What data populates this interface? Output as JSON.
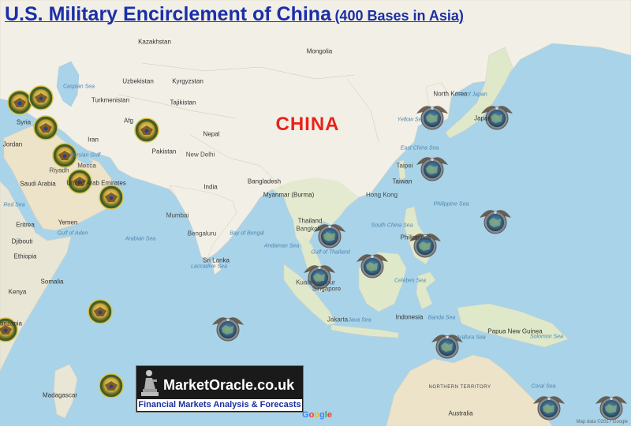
{
  "title": {
    "main": "U.S. Military Encirclement of China",
    "sub": "(400 Bases in Asia)"
  },
  "highlight_label": "CHINA",
  "colors": {
    "title": "#1b2fa8",
    "highlight": "#e8231b",
    "ocean": "#a9d3e8",
    "land": "#f2efe6",
    "forest": "#c8dfae",
    "desert": "#ece3c8"
  },
  "labels": [
    {
      "text": "Kazakhstan",
      "kind": "country"
    },
    {
      "text": "Mongolia",
      "kind": "country"
    },
    {
      "text": "Uzbekistan",
      "kind": "country"
    },
    {
      "text": "Kyrgyzstan",
      "kind": "country"
    },
    {
      "text": "Turkmenistan",
      "kind": "country"
    },
    {
      "text": "Tajikistan",
      "kind": "country"
    },
    {
      "text": "Caspian Sea",
      "kind": "sea"
    },
    {
      "text": "Syria",
      "kind": "country"
    },
    {
      "text": "Jordan",
      "kind": "country"
    },
    {
      "text": "Iran",
      "kind": "country"
    },
    {
      "text": "Afg",
      "kind": "country"
    },
    {
      "text": "Pakistan",
      "kind": "country"
    },
    {
      "text": "Nepal",
      "kind": "country"
    },
    {
      "text": "New Delhi",
      "kind": "city"
    },
    {
      "text": "Riyadh",
      "kind": "city"
    },
    {
      "text": "Saudi Arabia",
      "kind": "country"
    },
    {
      "text": "Mecca",
      "kind": "city"
    },
    {
      "text": "Persian Gulf",
      "kind": "sea"
    },
    {
      "text": "United Arab Emirates",
      "kind": "country"
    },
    {
      "text": "Red Sea",
      "kind": "sea"
    },
    {
      "text": "Yemen",
      "kind": "country"
    },
    {
      "text": "Eritrea",
      "kind": "country"
    },
    {
      "text": "Djibouti",
      "kind": "country"
    },
    {
      "text": "Gulf of Aden",
      "kind": "sea"
    },
    {
      "text": "Ethiopia",
      "kind": "country"
    },
    {
      "text": "Somalia",
      "kind": "country"
    },
    {
      "text": "Kenya",
      "kind": "country"
    },
    {
      "text": "Tanzania",
      "kind": "country"
    },
    {
      "text": "Madagascar",
      "kind": "country"
    },
    {
      "text": "Arabian Sea",
      "kind": "sea"
    },
    {
      "text": "India",
      "kind": "country"
    },
    {
      "text": "Mumbai",
      "kind": "city"
    },
    {
      "text": "Bengaluru",
      "kind": "city"
    },
    {
      "text": "Sri Lanka",
      "kind": "country"
    },
    {
      "text": "Laccadive Sea",
      "kind": "sea"
    },
    {
      "text": "Bay of Bengal",
      "kind": "sea"
    },
    {
      "text": "Bangladesh",
      "kind": "country"
    },
    {
      "text": "Myanmar (Burma)",
      "kind": "country"
    },
    {
      "text": "Thailand",
      "kind": "country"
    },
    {
      "text": "Bangkok",
      "kind": "city"
    },
    {
      "text": "Andaman Sea",
      "kind": "sea"
    },
    {
      "text": "Kuala Lumpur",
      "kind": "city"
    },
    {
      "text": "Singapore",
      "kind": "city"
    },
    {
      "text": "Java Sea",
      "kind": "sea"
    },
    {
      "text": "Jakarta",
      "kind": "city"
    },
    {
      "text": "Indonesia",
      "kind": "country"
    },
    {
      "text": "Hong Kong",
      "kind": "city"
    },
    {
      "text": "Taiwan",
      "kind": "country"
    },
    {
      "text": "Taipei",
      "kind": "city"
    },
    {
      "text": "East China Sea",
      "kind": "sea"
    },
    {
      "text": "Yellow Sea",
      "kind": "sea"
    },
    {
      "text": "North Korea",
      "kind": "country"
    },
    {
      "text": "Sea of Japan",
      "kind": "sea"
    },
    {
      "text": "Japan",
      "kind": "country"
    },
    {
      "text": "South China Sea",
      "kind": "sea"
    },
    {
      "text": "Philippines",
      "kind": "country"
    },
    {
      "text": "Philippine Sea",
      "kind": "sea"
    },
    {
      "text": "Celebes Sea",
      "kind": "sea"
    },
    {
      "text": "Gulf of Thailand",
      "kind": "sea"
    },
    {
      "text": "Banda Sea",
      "kind": "sea"
    },
    {
      "text": "Arafura Sea",
      "kind": "sea"
    },
    {
      "text": "Papua New Guinea",
      "kind": "country"
    },
    {
      "text": "Solomon Sea",
      "kind": "sea"
    },
    {
      "text": "Coral Sea",
      "kind": "sea"
    },
    {
      "text": "NORTHERN TERRITORY",
      "kind": "region"
    },
    {
      "text": "Australia",
      "kind": "country"
    }
  ],
  "markers": [
    {
      "type": "centcom"
    },
    {
      "type": "centcom"
    },
    {
      "type": "centcom"
    },
    {
      "type": "centcom"
    },
    {
      "type": "centcom"
    },
    {
      "type": "centcom"
    },
    {
      "type": "centcom"
    },
    {
      "type": "centcom"
    },
    {
      "type": "centcom"
    },
    {
      "type": "centcom"
    },
    {
      "type": "pacom"
    },
    {
      "type": "pacom"
    },
    {
      "type": "pacom"
    },
    {
      "type": "pacom"
    },
    {
      "type": "pacom"
    },
    {
      "type": "pacom"
    },
    {
      "type": "pacom"
    },
    {
      "type": "pacom"
    },
    {
      "type": "pacom"
    },
    {
      "type": "pacom"
    },
    {
      "type": "pacom"
    },
    {
      "type": "pacom"
    }
  ],
  "logo": {
    "name": "MarketOracle.co.uk",
    "tagline": "Financial Markets Analysis & Forecasts"
  },
  "google_mark": "Google",
  "attribution": "Map data ©2017 Google"
}
